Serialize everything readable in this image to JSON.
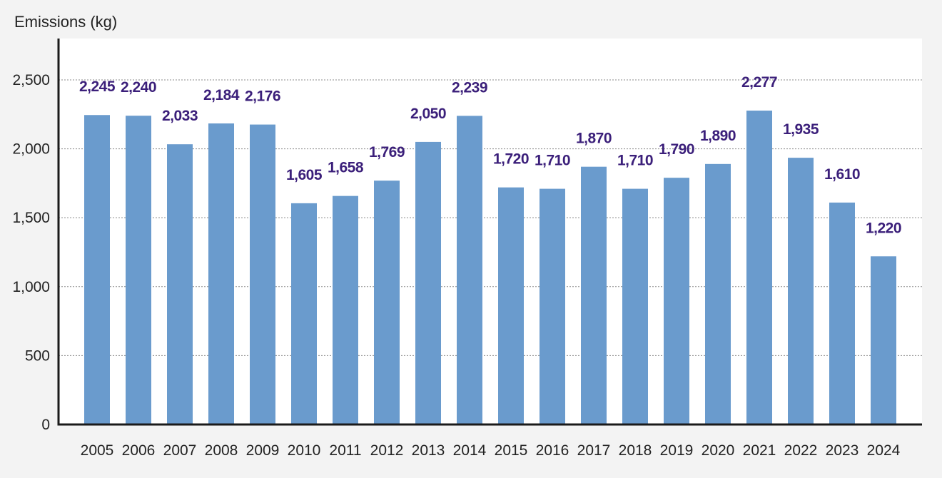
{
  "chart_data": {
    "type": "bar",
    "title": "",
    "xlabel": "",
    "ylabel": "Emissions (kg)",
    "categories": [
      "2005",
      "2006",
      "2007",
      "2008",
      "2009",
      "2010",
      "2011",
      "2012",
      "2013",
      "2014",
      "2015",
      "2016",
      "2017",
      "2018",
      "2019",
      "2020",
      "2021",
      "2022",
      "2023",
      "2024"
    ],
    "values": [
      2245,
      2240,
      2033,
      2184,
      2176,
      1605,
      1658,
      1769,
      2050,
      2239,
      1720,
      1710,
      1870,
      1710,
      1790,
      1890,
      2277,
      1935,
      1610,
      1220
    ],
    "value_labels": [
      "2,245",
      "2,240",
      "2,033",
      "2,184",
      "2,176",
      "1,605",
      "1,658",
      "1,769",
      "2,050",
      "2,239",
      "1,720",
      "1,710",
      "1,870",
      "1,710",
      "1,790",
      "1,890",
      "2,277",
      "1,935",
      "1,610",
      "1,220"
    ],
    "ylim": [
      0,
      2800
    ],
    "yticks": [
      0,
      500,
      1000,
      1500,
      2000,
      2500
    ],
    "ytick_labels": [
      "0",
      "500",
      "1,000",
      "1,500",
      "2,000",
      "2,500"
    ],
    "grid": true,
    "legend": "none",
    "colors": {
      "bar": "#6a9bcd",
      "label": "#3b1f7a",
      "plot_background": "#ffffff",
      "page_background": "#f3f3f3"
    }
  }
}
